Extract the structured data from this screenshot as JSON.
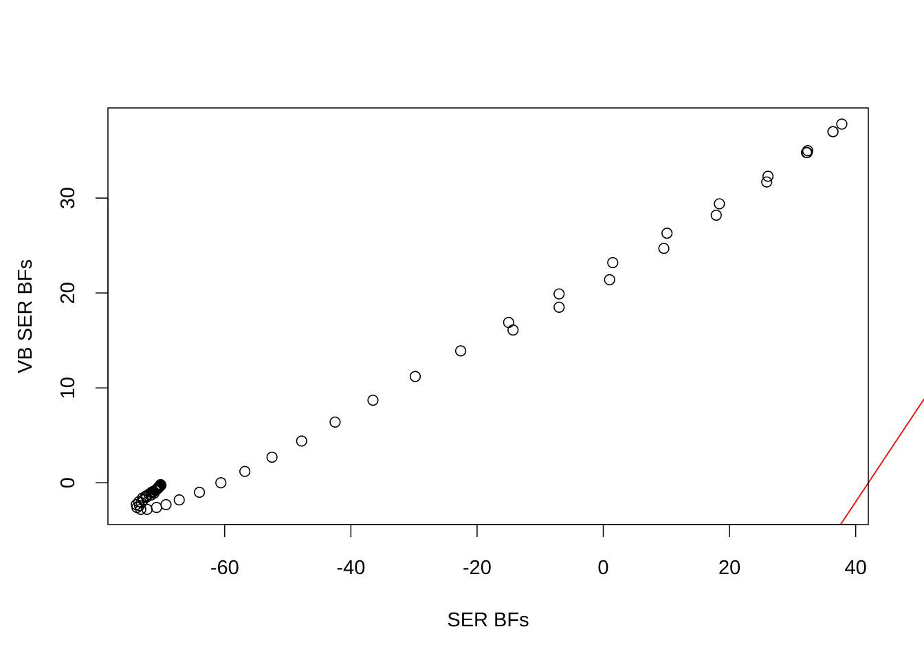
{
  "chart_data": {
    "type": "scatter",
    "title": "",
    "xlabel": "SER BFs",
    "ylabel": "VB SER BFs",
    "xlim": [
      -78.5,
      42
    ],
    "ylim": [
      -4.4,
      39.5
    ],
    "x_ticks": [
      -60,
      -40,
      -20,
      0,
      20,
      40
    ],
    "x_tick_labels": [
      "-60",
      "-40",
      "-20",
      "0",
      "20",
      "40"
    ],
    "y_ticks": [
      0,
      10,
      20,
      30
    ],
    "y_tick_labels": [
      "0",
      "10",
      "20",
      "30"
    ],
    "grid": false,
    "legend": "none",
    "colors": {
      "points": "#000000",
      "reference_line": "#ff0000",
      "frame": "#000000"
    },
    "reference_line": {
      "intercept": -42,
      "slope": 1
    },
    "series": [
      {
        "x": [
          37.8,
          36.4,
          36.4,
          32.4,
          32.3,
          32.2,
          26.1,
          25.9,
          18.4,
          17.9,
          10.1,
          9.6,
          1.5,
          1.0,
          -7.0,
          -7.0,
          -14.3,
          -15.0,
          -22.6,
          -29.8,
          -36.5,
          -42.5,
          -47.8,
          -52.5,
          -56.8,
          -60.6,
          -64.0,
          -67.2,
          -69.3,
          -70.8,
          -72.3,
          -73.3,
          -73.9,
          -74.0,
          -73.6,
          -73.0,
          -72.5,
          -72.0,
          -71.6,
          -71.3,
          -71.0,
          -70.8,
          -70.6,
          -70.5,
          -70.4,
          -70.3,
          -70.2,
          -70.1,
          -71.2,
          -71.7,
          -72.4,
          -72.9,
          -73.2,
          -73.5,
          -71.4,
          -70.9,
          -70.7,
          -70.6,
          -70.45,
          -70.3,
          -70.2,
          -70.15
        ],
        "y": [
          37.8,
          37.0,
          37.0,
          35.0,
          34.8,
          34.8,
          32.3,
          31.7,
          29.4,
          28.2,
          26.3,
          24.7,
          23.2,
          21.4,
          19.9,
          18.5,
          16.1,
          16.9,
          13.9,
          11.2,
          8.7,
          6.4,
          4.4,
          2.7,
          1.2,
          0.0,
          -1.0,
          -1.8,
          -2.3,
          -2.6,
          -2.8,
          -2.8,
          -2.6,
          -2.3,
          -2.0,
          -1.6,
          -1.4,
          -1.2,
          -1.0,
          -0.9,
          -0.8,
          -0.7,
          -0.6,
          -0.5,
          -0.4,
          -0.35,
          -0.3,
          -0.25,
          -1.1,
          -1.3,
          -1.5,
          -1.8,
          -2.1,
          -2.4,
          -1.0,
          -0.75,
          -0.65,
          -0.55,
          -0.45,
          -0.4,
          -0.3,
          -0.2
        ]
      }
    ]
  }
}
